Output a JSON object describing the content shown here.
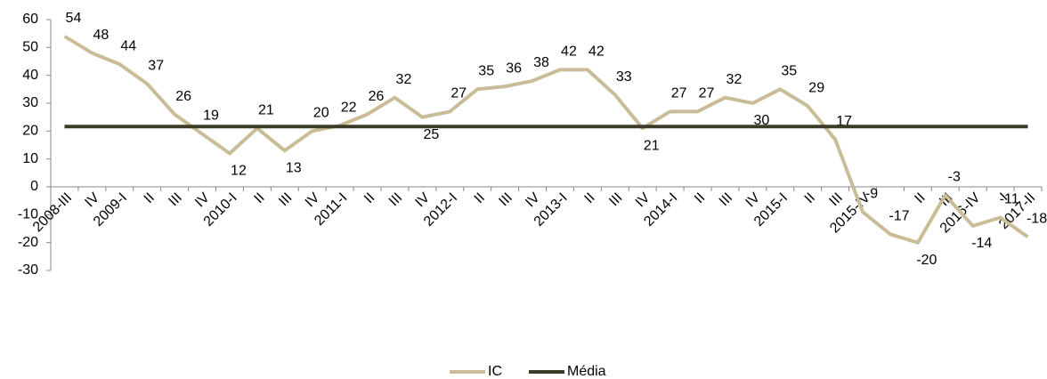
{
  "chart_data": {
    "type": "line",
    "categories": [
      "2008-III",
      "IV",
      "2009-I",
      "II",
      "III",
      "IV",
      "2010-I",
      "II",
      "III",
      "IV",
      "2011-I",
      "II",
      "III",
      "IV",
      "2012-I",
      "II",
      "III",
      "IV",
      "2013-I",
      "II",
      "III",
      "IV",
      "2014-I",
      "II",
      "III",
      "IV",
      "2015-I",
      "II",
      "III",
      "2015-IV",
      null,
      "II",
      "III",
      "2016-IV",
      "I",
      "2017-II"
    ],
    "series": [
      {
        "name": "IC",
        "color": "#c9bd97",
        "data_labels": true,
        "values": [
          54,
          48,
          44,
          37,
          26,
          19,
          12,
          21,
          13,
          20,
          22,
          26,
          32,
          25,
          27,
          35,
          36,
          38,
          42,
          42,
          33,
          21,
          27,
          27,
          32,
          30,
          35,
          29,
          17,
          -9,
          -17,
          -20,
          -3,
          -14,
          -11,
          -18
        ]
      },
      {
        "name": "Média",
        "color": "#3d3a28",
        "data_labels": false,
        "values": [
          21.6,
          21.6,
          21.6,
          21.6,
          21.6,
          21.6,
          21.6,
          21.6,
          21.6,
          21.6,
          21.6,
          21.6,
          21.6,
          21.6,
          21.6,
          21.6,
          21.6,
          21.6,
          21.6,
          21.6,
          21.6,
          21.6,
          21.6,
          21.6,
          21.6,
          21.6,
          21.6,
          21.6,
          21.6,
          21.6,
          21.6,
          21.6,
          21.6,
          21.6,
          21.6,
          21.6
        ]
      }
    ],
    "ylim": [
      -30,
      60
    ],
    "yticks": [
      -30,
      -20,
      -10,
      0,
      10,
      20,
      30,
      40,
      50,
      60
    ],
    "grid": false,
    "legend": "bottom"
  }
}
